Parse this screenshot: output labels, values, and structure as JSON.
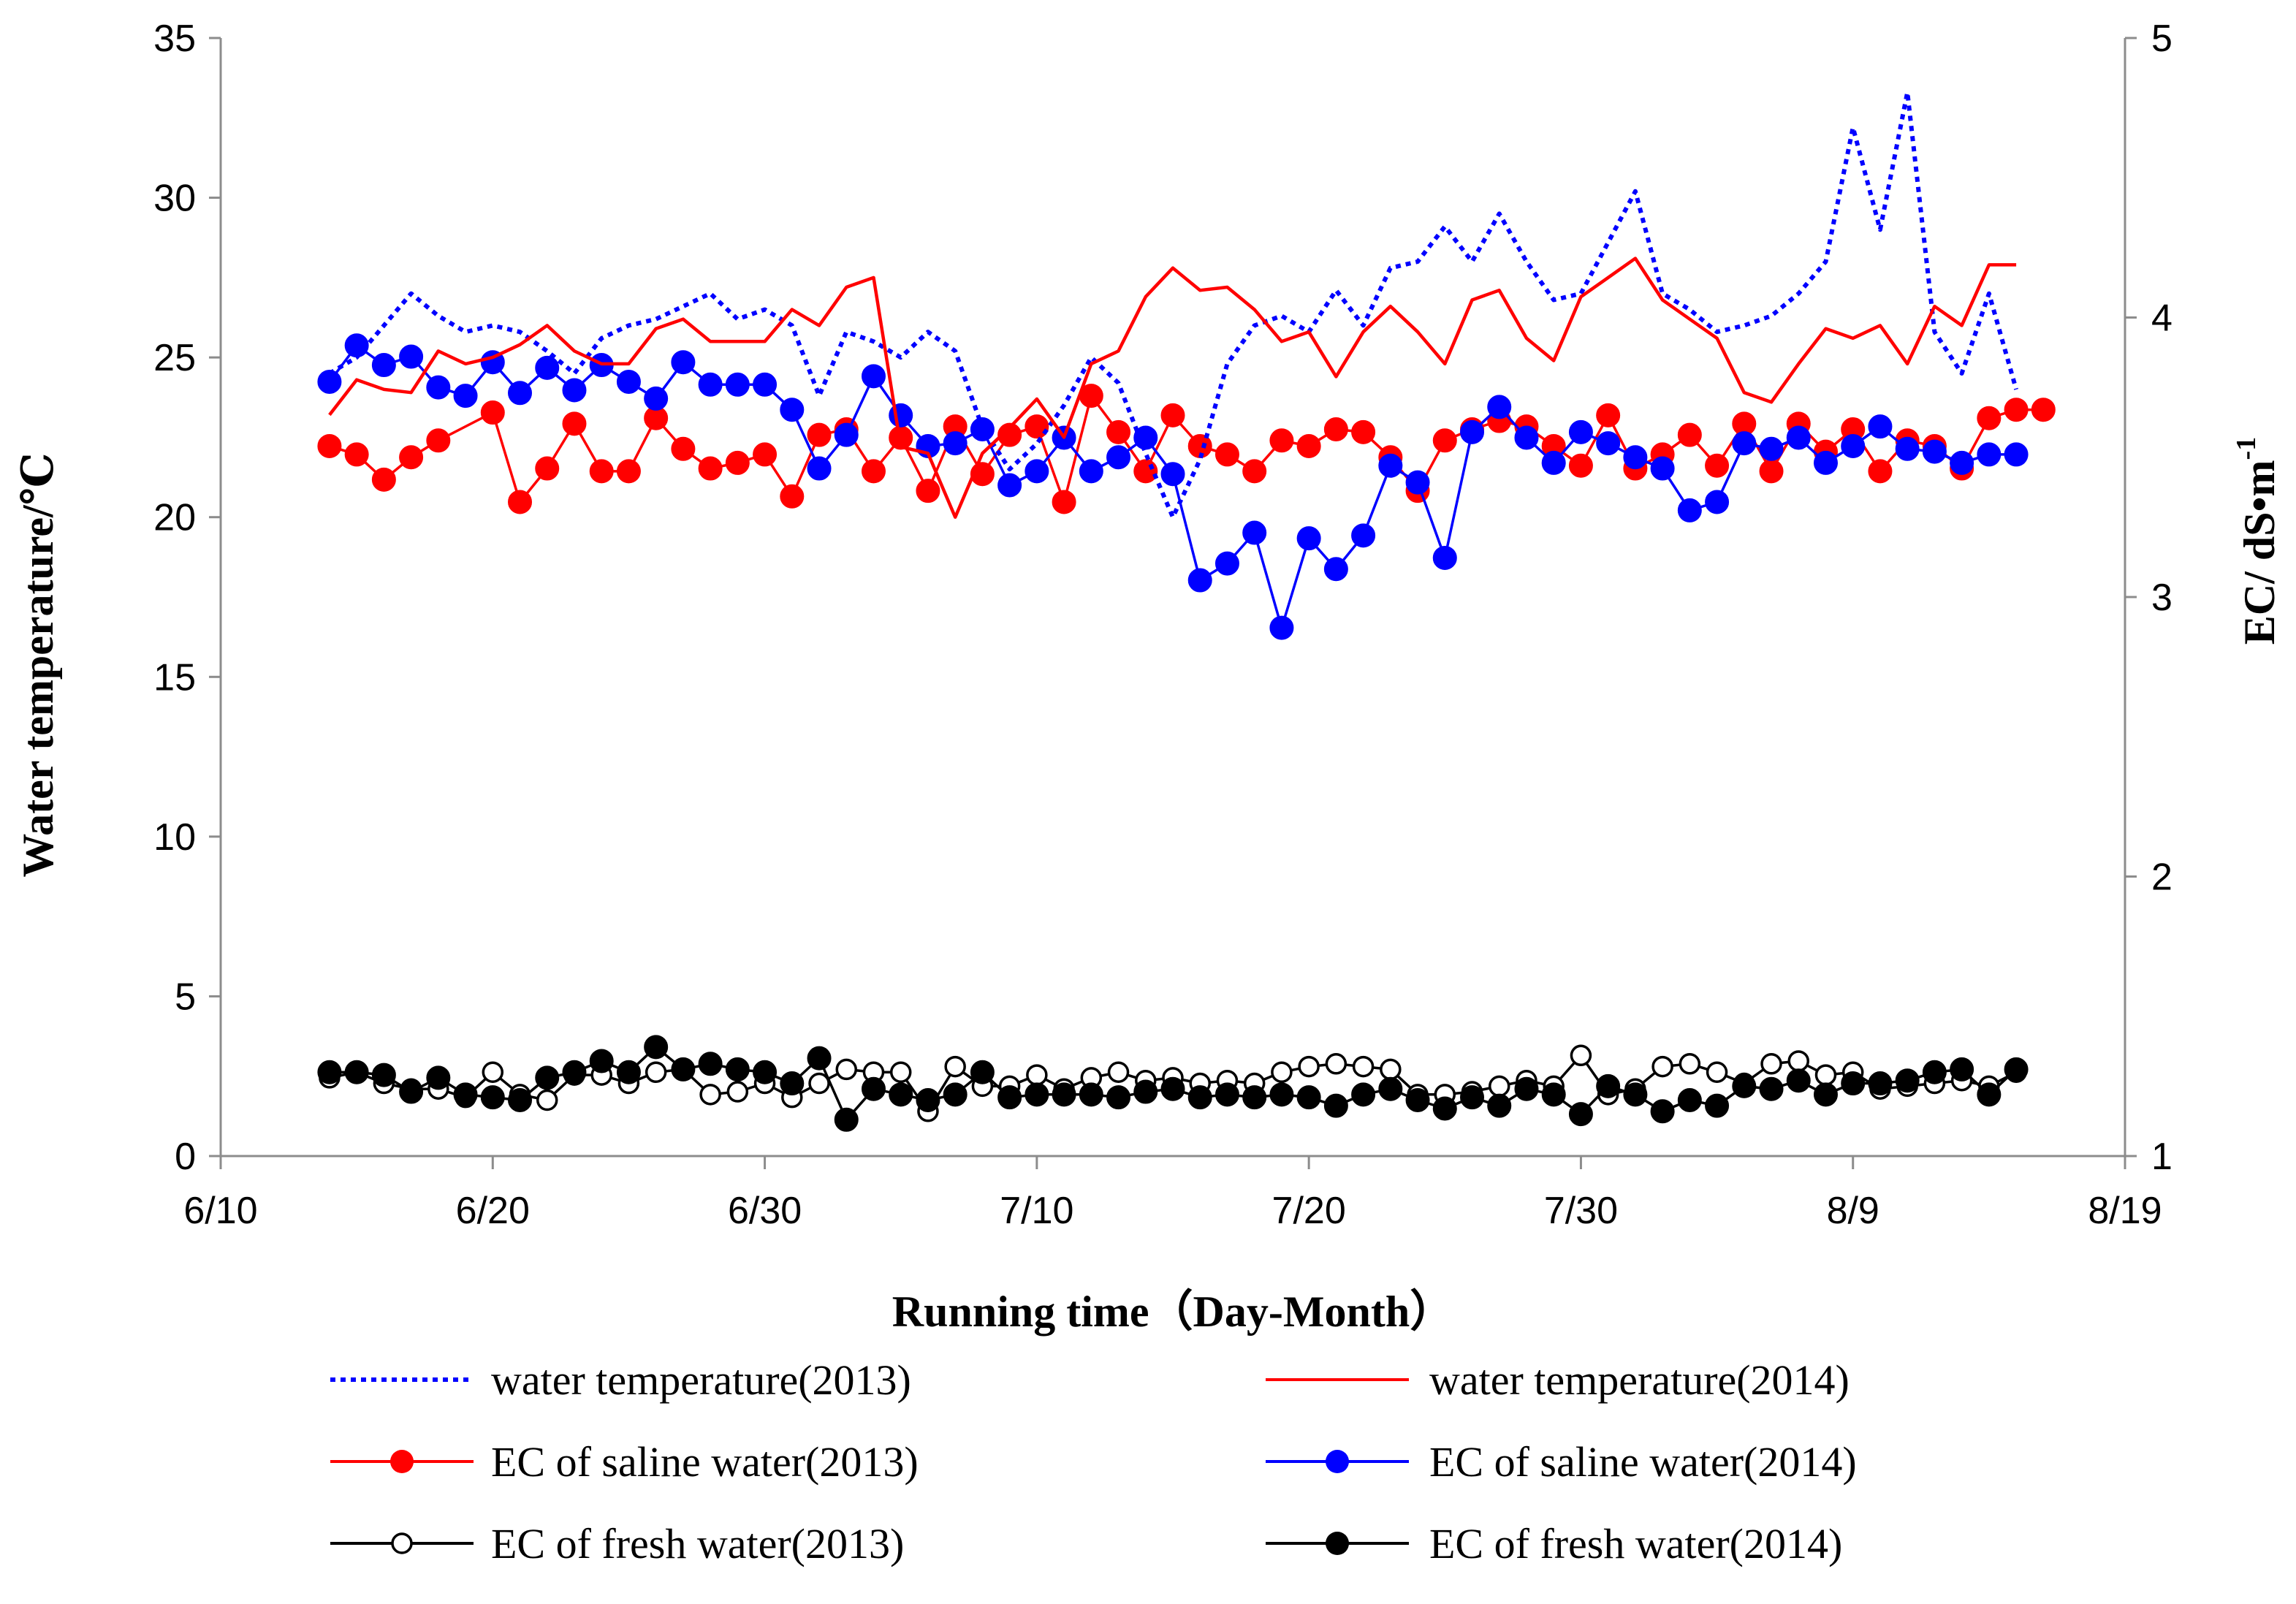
{
  "chart_data": {
    "type": "line",
    "xlabel": "Running time（Day-Month）",
    "ylabel_left": "Water temperature/℃",
    "ylabel_right": "EC/ dS•m-1",
    "x_axis": {
      "min": "6/10",
      "max": "8/19",
      "ticks": [
        "6/10",
        "6/20",
        "6/30",
        "7/10",
        "7/20",
        "7/30",
        "8/9",
        "8/19"
      ]
    },
    "y_left": {
      "min": 0,
      "max": 35,
      "ticks": [
        "0",
        "5",
        "10",
        "15",
        "20",
        "25",
        "30",
        "35"
      ]
    },
    "y_right": {
      "min": 1,
      "max": 5,
      "ticks": [
        "1",
        "2",
        "3",
        "4",
        "5"
      ]
    },
    "legend_placement": "bottom",
    "colors": {
      "blue": "#0000ff",
      "red": "#ff0000",
      "black": "#000000"
    },
    "series": [
      {
        "name": "water temperature(2013)",
        "axis": "left",
        "color": "#0000ff",
        "style": "dotted",
        "marker": "none",
        "x": [
          "6/14",
          "6/15",
          "6/16",
          "6/17",
          "6/18",
          "6/19",
          "6/20",
          "6/21",
          "6/22",
          "6/23",
          "6/24",
          "6/25",
          "6/26",
          "6/27",
          "6/28",
          "6/29",
          "6/30",
          "7/1",
          "7/2",
          "7/3",
          "7/4",
          "7/5",
          "7/6",
          "7/7",
          "7/8",
          "7/9",
          "7/10",
          "7/11",
          "7/12",
          "7/13",
          "7/14",
          "7/15",
          "7/16",
          "7/17",
          "7/18",
          "7/19",
          "7/20",
          "7/21",
          "7/22",
          "7/23",
          "7/24",
          "7/25",
          "7/26",
          "7/27",
          "7/28",
          "7/29",
          "7/30",
          "7/31",
          "8/1",
          "8/2",
          "8/3",
          "8/4",
          "8/5",
          "8/6",
          "8/7",
          "8/8",
          "8/9",
          "8/10",
          "8/11",
          "8/12",
          "8/13",
          "8/14",
          "8/15"
        ],
        "y": [
          24.5,
          25.0,
          26.0,
          27.0,
          26.3,
          25.8,
          26.0,
          25.8,
          25.2,
          24.5,
          25.6,
          26.0,
          26.2,
          26.6,
          27.0,
          26.2,
          26.5,
          26.0,
          23.8,
          25.8,
          25.5,
          25.0,
          25.8,
          25.2,
          22.8,
          21.5,
          22.3,
          23.5,
          25.0,
          24.2,
          22.0,
          20.0,
          21.8,
          24.8,
          26.0,
          26.3,
          25.8,
          27.1,
          26.0,
          27.8,
          28.0,
          29.1,
          28.0,
          29.5,
          28.0,
          26.8,
          27.0,
          28.6,
          30.2,
          27.0,
          26.5,
          25.8,
          26.0,
          26.3,
          27.0,
          28.0,
          32.2,
          29.0,
          33.3,
          25.8,
          24.5,
          27.0,
          24.0
        ]
      },
      {
        "name": "water temperature(2014)",
        "axis": "left",
        "color": "#ff0000",
        "style": "solid",
        "marker": "none",
        "x": [
          "6/14",
          "6/15",
          "6/16",
          "6/17",
          "6/18",
          "6/19",
          "6/20",
          "6/21",
          "6/22",
          "6/23",
          "6/24",
          "6/25",
          "6/26",
          "6/27",
          "6/28",
          "6/29",
          "6/30",
          "7/1",
          "7/2",
          "7/3",
          "7/4",
          "7/5",
          "7/6",
          "7/7",
          "7/8",
          "7/9",
          "7/10",
          "7/11",
          "7/12",
          "7/13",
          "7/14",
          "7/15",
          "7/16",
          "7/17",
          "7/18",
          "7/19",
          "7/20",
          "7/21",
          "7/22",
          "7/23",
          "7/24",
          "7/25",
          "7/26",
          "7/27",
          "7/28",
          "7/29",
          "7/30",
          "7/31",
          "8/1",
          "8/2",
          "8/3",
          "8/4",
          "8/5",
          "8/6",
          "8/7",
          "8/8",
          "8/9",
          "8/10",
          "8/11",
          "8/12",
          "8/13",
          "8/14",
          "8/15"
        ],
        "y": [
          23.2,
          24.3,
          24.0,
          23.9,
          25.2,
          24.8,
          25.0,
          25.4,
          26.0,
          25.2,
          24.8,
          24.8,
          25.9,
          26.2,
          25.5,
          25.5,
          25.5,
          26.5,
          26.0,
          27.2,
          27.5,
          22.2,
          22.0,
          20.0,
          22.0,
          22.8,
          23.7,
          22.5,
          24.8,
          25.2,
          26.9,
          27.8,
          27.1,
          27.2,
          26.5,
          25.5,
          25.8,
          24.4,
          25.8,
          26.6,
          25.8,
          24.8,
          26.8,
          27.1,
          25.6,
          24.9,
          26.9,
          27.5,
          28.1,
          26.8,
          26.2,
          25.6,
          23.9,
          23.6,
          24.8,
          25.9,
          25.6,
          26.0,
          24.8,
          26.6,
          26.0,
          27.9,
          27.9
        ]
      },
      {
        "name": "EC of saline water(2013)",
        "axis": "right",
        "color": "#ff0000",
        "style": "solid",
        "marker": "filled-circle",
        "x": [
          "6/14",
          "6/15",
          "6/16",
          "6/17",
          "6/18",
          "6/20",
          "6/21",
          "6/22",
          "6/23",
          "6/24",
          "6/25",
          "6/26",
          "6/27",
          "6/28",
          "6/29",
          "6/30",
          "7/1",
          "7/2",
          "7/3",
          "7/4",
          "7/5",
          "7/6",
          "7/7",
          "7/8",
          "7/9",
          "7/10",
          "7/11",
          "7/12",
          "7/13",
          "7/14",
          "7/15",
          "7/16",
          "7/17",
          "7/18",
          "7/19",
          "7/20",
          "7/21",
          "7/22",
          "7/23",
          "7/24",
          "7/25",
          "7/26",
          "7/27",
          "7/28",
          "7/29",
          "7/30",
          "7/31",
          "8/1",
          "8/2",
          "8/3",
          "8/4",
          "8/5",
          "8/6",
          "8/7",
          "8/8",
          "8/9",
          "8/10",
          "8/11",
          "8/12",
          "8/13",
          "8/14",
          "8/15",
          "8/16"
        ],
        "y": [
          3.54,
          3.51,
          3.42,
          3.5,
          3.56,
          3.66,
          3.34,
          3.46,
          3.62,
          3.45,
          3.45,
          3.64,
          3.53,
          3.46,
          3.48,
          3.51,
          3.36,
          3.58,
          3.6,
          3.45,
          3.57,
          3.38,
          3.61,
          3.44,
          3.58,
          3.61,
          3.34,
          3.72,
          3.59,
          3.45,
          3.65,
          3.54,
          3.51,
          3.45,
          3.56,
          3.54,
          3.6,
          3.59,
          3.5,
          3.38,
          3.56,
          3.6,
          3.63,
          3.61,
          3.54,
          3.47,
          3.65,
          3.46,
          3.51,
          3.58,
          3.47,
          3.62,
          3.45,
          3.62,
          3.52,
          3.6,
          3.45,
          3.56,
          3.54,
          3.46,
          3.64,
          3.67,
          3.67
        ]
      },
      {
        "name": "EC of saline water(2014)",
        "axis": "right",
        "color": "#0000ff",
        "style": "solid",
        "marker": "filled-circle",
        "x": [
          "6/14",
          "6/15",
          "6/16",
          "6/17",
          "6/18",
          "6/19",
          "6/20",
          "6/21",
          "6/22",
          "6/23",
          "6/24",
          "6/25",
          "6/26",
          "6/27",
          "6/28",
          "6/29",
          "6/30",
          "7/1",
          "7/2",
          "7/3",
          "7/4",
          "7/5",
          "7/6",
          "7/7",
          "7/8",
          "7/9",
          "7/10",
          "7/11",
          "7/12",
          "7/13",
          "7/14",
          "7/15",
          "7/16",
          "7/17",
          "7/18",
          "7/19",
          "7/20",
          "7/21",
          "7/22",
          "7/23",
          "7/24",
          "7/25",
          "7/26",
          "7/27",
          "7/28",
          "7/29",
          "7/30",
          "7/31",
          "8/1",
          "8/2",
          "8/3",
          "8/4",
          "8/5",
          "8/6",
          "8/7",
          "8/8",
          "8/9",
          "8/10",
          "8/11",
          "8/12",
          "8/13",
          "8/14",
          "8/15"
        ],
        "y": [
          3.77,
          3.9,
          3.83,
          3.86,
          3.75,
          3.72,
          3.84,
          3.73,
          3.82,
          3.74,
          3.83,
          3.77,
          3.71,
          3.84,
          3.76,
          3.76,
          3.76,
          3.67,
          3.46,
          3.58,
          3.79,
          3.65,
          3.54,
          3.55,
          3.6,
          3.4,
          3.45,
          3.57,
          3.45,
          3.5,
          3.57,
          3.44,
          3.06,
          3.12,
          3.23,
          2.89,
          3.21,
          3.1,
          3.22,
          3.47,
          3.41,
          3.14,
          3.59,
          3.68,
          3.57,
          3.48,
          3.59,
          3.55,
          3.5,
          3.46,
          3.31,
          3.34,
          3.55,
          3.53,
          3.57,
          3.48,
          3.54,
          3.61,
          3.53,
          3.52,
          3.48,
          3.51,
          3.51
        ]
      },
      {
        "name": "EC of fresh water(2013)",
        "axis": "right",
        "color": "#000000",
        "style": "solid",
        "marker": "open-circle",
        "x": [
          "6/14",
          "6/15",
          "6/16",
          "6/17",
          "6/18",
          "6/19",
          "6/20",
          "6/21",
          "6/22",
          "6/23",
          "6/24",
          "6/25",
          "6/26",
          "6/27",
          "6/28",
          "6/29",
          "6/30",
          "7/1",
          "7/2",
          "7/3",
          "7/4",
          "7/5",
          "7/6",
          "7/7",
          "7/8",
          "7/9",
          "7/10",
          "7/11",
          "7/12",
          "7/13",
          "7/14",
          "7/15",
          "7/16",
          "7/17",
          "7/18",
          "7/19",
          "7/20",
          "7/21",
          "7/22",
          "7/23",
          "7/24",
          "7/25",
          "7/26",
          "7/27",
          "7/28",
          "7/29",
          "7/30",
          "7/31",
          "8/1",
          "8/2",
          "8/3",
          "8/4",
          "8/5",
          "8/6",
          "8/7",
          "8/8",
          "8/9",
          "8/10",
          "8/11",
          "8/12",
          "8/13",
          "8/14",
          "8/15"
        ],
        "y": [
          1.28,
          1.3,
          1.26,
          1.24,
          1.24,
          1.21,
          1.3,
          1.22,
          1.2,
          1.29,
          1.29,
          1.26,
          1.3,
          1.31,
          1.22,
          1.23,
          1.26,
          1.21,
          1.26,
          1.31,
          1.3,
          1.3,
          1.16,
          1.32,
          1.25,
          1.25,
          1.29,
          1.24,
          1.28,
          1.3,
          1.27,
          1.28,
          1.26,
          1.27,
          1.26,
          1.3,
          1.32,
          1.33,
          1.32,
          1.31,
          1.22,
          1.22,
          1.23,
          1.25,
          1.27,
          1.25,
          1.36,
          1.22,
          1.24,
          1.32,
          1.33,
          1.3,
          1.26,
          1.33,
          1.34,
          1.29,
          1.3,
          1.24,
          1.25,
          1.26,
          1.27,
          1.25,
          1.3
        ]
      },
      {
        "name": "EC of fresh water(2014)",
        "axis": "right",
        "color": "#000000",
        "style": "solid",
        "marker": "filled-circle",
        "x": [
          "6/14",
          "6/15",
          "6/16",
          "6/17",
          "6/18",
          "6/19",
          "6/20",
          "6/21",
          "6/22",
          "6/23",
          "6/24",
          "6/25",
          "6/26",
          "6/27",
          "6/28",
          "6/29",
          "6/30",
          "7/1",
          "7/2",
          "7/3",
          "7/4",
          "7/5",
          "7/6",
          "7/7",
          "7/8",
          "7/9",
          "7/10",
          "7/11",
          "7/12",
          "7/13",
          "7/14",
          "7/15",
          "7/16",
          "7/17",
          "7/18",
          "7/19",
          "7/20",
          "7/21",
          "7/22",
          "7/23",
          "7/24",
          "7/25",
          "7/26",
          "7/27",
          "7/28",
          "7/29",
          "7/30",
          "7/31",
          "8/1",
          "8/2",
          "8/3",
          "8/4",
          "8/5",
          "8/6",
          "8/7",
          "8/8",
          "8/9",
          "8/10",
          "8/11",
          "8/12",
          "8/13",
          "8/14",
          "8/15"
        ],
        "y": [
          1.3,
          1.3,
          1.29,
          1.23,
          1.28,
          1.22,
          1.21,
          1.2,
          1.28,
          1.3,
          1.34,
          1.3,
          1.39,
          1.31,
          1.33,
          1.31,
          1.3,
          1.26,
          1.35,
          1.13,
          1.24,
          1.22,
          1.2,
          1.22,
          1.3,
          1.21,
          1.22,
          1.22,
          1.22,
          1.21,
          1.23,
          1.24,
          1.21,
          1.22,
          1.21,
          1.22,
          1.21,
          1.18,
          1.22,
          1.24,
          1.2,
          1.17,
          1.21,
          1.18,
          1.24,
          1.22,
          1.15,
          1.25,
          1.22,
          1.16,
          1.2,
          1.18,
          1.25,
          1.24,
          1.27,
          1.22,
          1.26,
          1.26,
          1.27,
          1.3,
          1.31,
          1.22,
          1.31
        ]
      }
    ]
  }
}
